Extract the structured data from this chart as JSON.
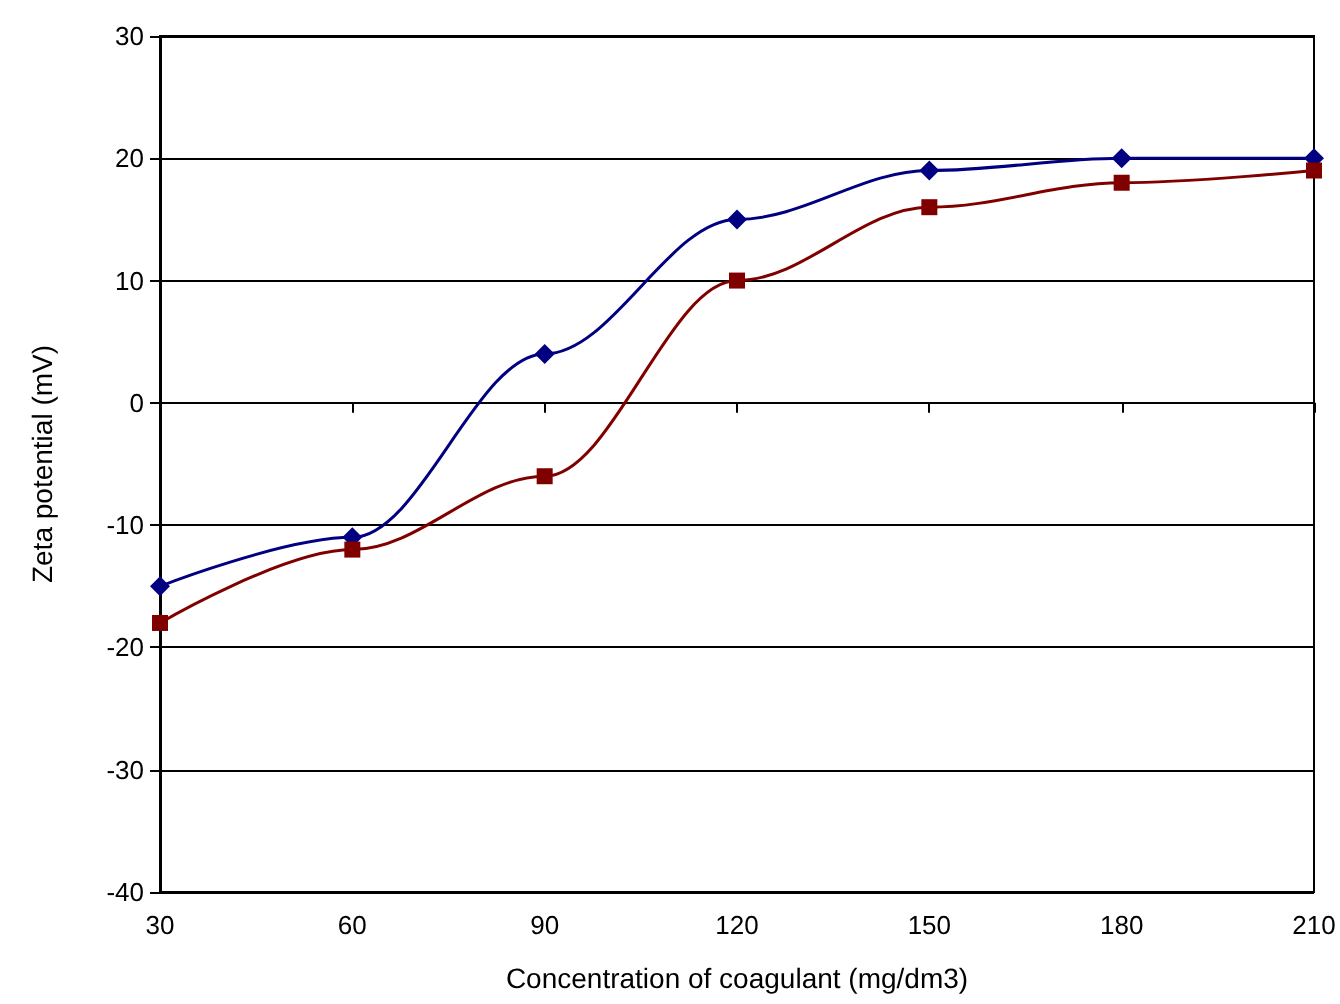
{
  "chart_data": {
    "type": "line",
    "xlabel": "Concentration of coagulant (mg/dm3)",
    "ylabel": "Zeta potential (mV)",
    "x": [
      30,
      60,
      90,
      120,
      150,
      180,
      210
    ],
    "series": [
      {
        "color": "#000080",
        "marker": "diamond",
        "values": [
          -15,
          -11,
          4,
          15,
          19,
          20,
          20
        ]
      },
      {
        "color": "#800000",
        "marker": "square",
        "values": [
          -18,
          -12,
          -6,
          10,
          16,
          18,
          19
        ]
      }
    ],
    "xlim": [
      30,
      210
    ],
    "xticks": [
      30,
      60,
      90,
      120,
      150,
      180,
      210
    ],
    "ylim": [
      -40,
      30
    ],
    "yticks": [
      -40,
      -30,
      -20,
      -10,
      0,
      10,
      20,
      30
    ],
    "grid": "y",
    "legend": false,
    "line_style": "solid"
  }
}
